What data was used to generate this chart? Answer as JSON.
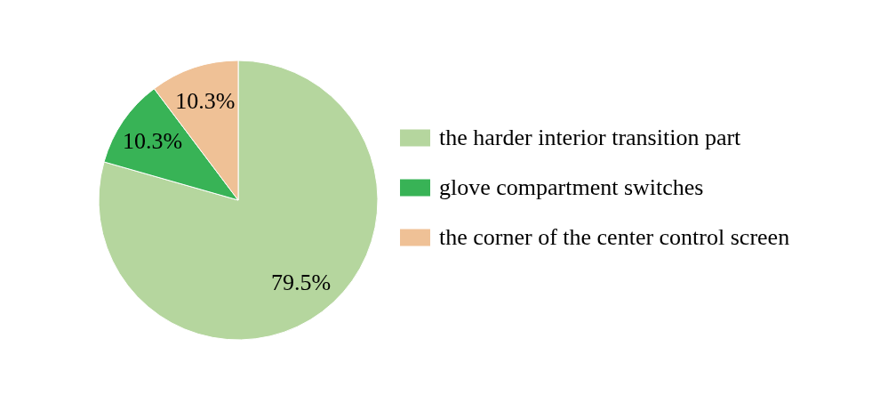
{
  "chart_data": {
    "type": "pie",
    "categories": [
      "the harder interior transition part",
      "glove compartment switches",
      "the corner of the center control screen"
    ],
    "values": [
      79.5,
      10.3,
      10.3
    ],
    "colors": [
      "#b5d69e",
      "#38b356",
      "#efc196"
    ],
    "value_labels": [
      "79.5%",
      "10.3%",
      "10.3%"
    ],
    "legend": "right"
  }
}
